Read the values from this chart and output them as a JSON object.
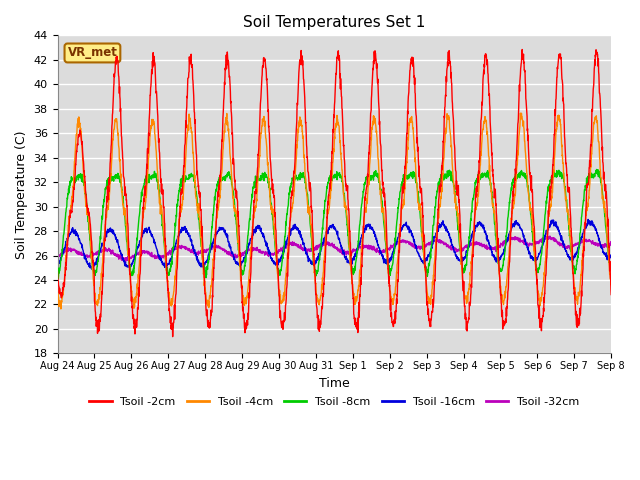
{
  "title": "Soil Temperatures Set 1",
  "xlabel": "Time",
  "ylabel": "Soil Temperature (C)",
  "ylim": [
    18,
    44
  ],
  "yticks": [
    18,
    20,
    22,
    24,
    26,
    28,
    30,
    32,
    34,
    36,
    38,
    40,
    42,
    44
  ],
  "bg_color": "#dcdcdc",
  "fig_color": "#ffffff",
  "grid_color": "#ffffff",
  "colors": {
    "2cm": "#ff0000",
    "4cm": "#ff8800",
    "8cm": "#00cc00",
    "16cm": "#0000dd",
    "32cm": "#bb00bb"
  },
  "legend_labels": [
    "Tsoil -2cm",
    "Tsoil -4cm",
    "Tsoil -8cm",
    "Tsoil -16cm",
    "Tsoil -32cm"
  ],
  "watermark": "VR_met",
  "n_days": 15,
  "points_per_day": 144,
  "x_tick_labels": [
    "Aug 24",
    "Aug 25",
    "Aug 26",
    "Aug 27",
    "Aug 28",
    "Aug 29",
    "Aug 30",
    "Aug 31",
    "Sep 1",
    "Sep 2",
    "Sep 3",
    "Sep 4",
    "Sep 5",
    "Sep 6",
    "Sep 7",
    "Sep 8"
  ]
}
